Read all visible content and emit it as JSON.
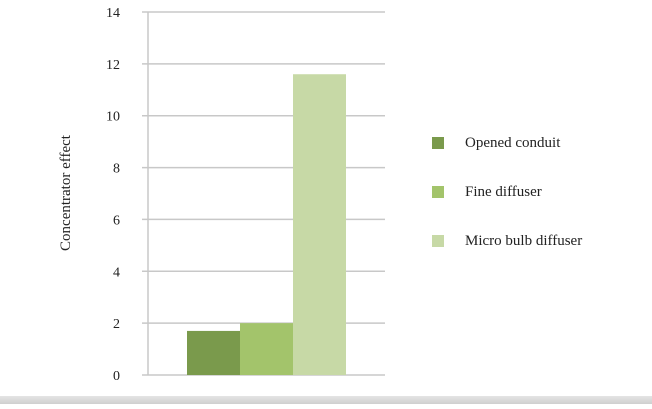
{
  "chart_data": {
    "type": "bar",
    "title": "",
    "xlabel": "",
    "ylabel": "Concentrator effect",
    "ylim": [
      0,
      14
    ],
    "yticks": [
      0,
      2,
      4,
      6,
      8,
      10,
      12,
      14
    ],
    "grid": true,
    "legend_position": "right",
    "categories": [
      ""
    ],
    "series": [
      {
        "name": "Opened conduit",
        "values": [
          1.7
        ],
        "color": "#7a9a4c"
      },
      {
        "name": "Fine diffuser",
        "values": [
          2.0
        ],
        "color": "#a3c46b"
      },
      {
        "name": "Micro bulb diffuser",
        "values": [
          11.6
        ],
        "color": "#c7d9a6"
      }
    ]
  }
}
